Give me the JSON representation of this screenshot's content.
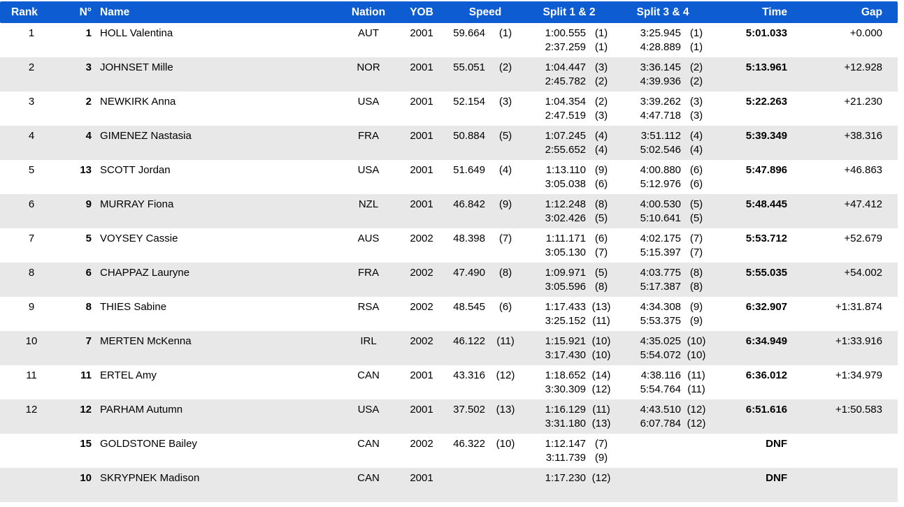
{
  "colors": {
    "header_bg": "#0d5cd2",
    "header_text": "#ffffff",
    "row_alt_bg": "#e8e8e8"
  },
  "table": {
    "header": {
      "rank": "Rank",
      "no": "N°",
      "name": "Name",
      "nation": "Nation",
      "yob": "YOB",
      "speed": "Speed",
      "split12": "Split 1 & 2",
      "split34": "Split 3 & 4",
      "time": "Time",
      "gap": "Gap"
    },
    "rows": [
      {
        "rank": "1",
        "no": "1",
        "name": "HOLL Valentina",
        "nation": "AUT",
        "yob": "2001",
        "speed": "59.664",
        "speed_rank": "(1)",
        "split1": "1:00.555",
        "split1_rank": "(1)",
        "split2": "2:37.259",
        "split2_rank": "(1)",
        "split3": "3:25.945",
        "split3_rank": "(1)",
        "split4": "4:28.889",
        "split4_rank": "(1)",
        "time": "5:01.033",
        "gap": "+0.000"
      },
      {
        "rank": "2",
        "no": "3",
        "name": "JOHNSET Mille",
        "nation": "NOR",
        "yob": "2001",
        "speed": "55.051",
        "speed_rank": "(2)",
        "split1": "1:04.447",
        "split1_rank": "(3)",
        "split2": "2:45.782",
        "split2_rank": "(2)",
        "split3": "3:36.145",
        "split3_rank": "(2)",
        "split4": "4:39.936",
        "split4_rank": "(2)",
        "time": "5:13.961",
        "gap": "+12.928"
      },
      {
        "rank": "3",
        "no": "2",
        "name": "NEWKIRK Anna",
        "nation": "USA",
        "yob": "2001",
        "speed": "52.154",
        "speed_rank": "(3)",
        "split1": "1:04.354",
        "split1_rank": "(2)",
        "split2": "2:47.519",
        "split2_rank": "(3)",
        "split3": "3:39.262",
        "split3_rank": "(3)",
        "split4": "4:47.718",
        "split4_rank": "(3)",
        "time": "5:22.263",
        "gap": "+21.230"
      },
      {
        "rank": "4",
        "no": "4",
        "name": "GIMENEZ Nastasia",
        "nation": "FRA",
        "yob": "2001",
        "speed": "50.884",
        "speed_rank": "(5)",
        "split1": "1:07.245",
        "split1_rank": "(4)",
        "split2": "2:55.652",
        "split2_rank": "(4)",
        "split3": "3:51.112",
        "split3_rank": "(4)",
        "split4": "5:02.546",
        "split4_rank": "(4)",
        "time": "5:39.349",
        "gap": "+38.316"
      },
      {
        "rank": "5",
        "no": "13",
        "name": "SCOTT Jordan",
        "nation": "USA",
        "yob": "2001",
        "speed": "51.649",
        "speed_rank": "(4)",
        "split1": "1:13.110",
        "split1_rank": "(9)",
        "split2": "3:05.038",
        "split2_rank": "(6)",
        "split3": "4:00.880",
        "split3_rank": "(6)",
        "split4": "5:12.976",
        "split4_rank": "(6)",
        "time": "5:47.896",
        "gap": "+46.863"
      },
      {
        "rank": "6",
        "no": "9",
        "name": "MURRAY Fiona",
        "nation": "NZL",
        "yob": "2001",
        "speed": "46.842",
        "speed_rank": "(9)",
        "split1": "1:12.248",
        "split1_rank": "(8)",
        "split2": "3:02.426",
        "split2_rank": "(5)",
        "split3": "4:00.530",
        "split3_rank": "(5)",
        "split4": "5:10.641",
        "split4_rank": "(5)",
        "time": "5:48.445",
        "gap": "+47.412"
      },
      {
        "rank": "7",
        "no": "5",
        "name": "VOYSEY Cassie",
        "nation": "AUS",
        "yob": "2002",
        "speed": "48.398",
        "speed_rank": "(7)",
        "split1": "1:11.171",
        "split1_rank": "(6)",
        "split2": "3:05.130",
        "split2_rank": "(7)",
        "split3": "4:02.175",
        "split3_rank": "(7)",
        "split4": "5:15.397",
        "split4_rank": "(7)",
        "time": "5:53.712",
        "gap": "+52.679"
      },
      {
        "rank": "8",
        "no": "6",
        "name": "CHAPPAZ Lauryne",
        "nation": "FRA",
        "yob": "2002",
        "speed": "47.490",
        "speed_rank": "(8)",
        "split1": "1:09.971",
        "split1_rank": "(5)",
        "split2": "3:05.596",
        "split2_rank": "(8)",
        "split3": "4:03.775",
        "split3_rank": "(8)",
        "split4": "5:17.387",
        "split4_rank": "(8)",
        "time": "5:55.035",
        "gap": "+54.002"
      },
      {
        "rank": "9",
        "no": "8",
        "name": "THIES Sabine",
        "nation": "RSA",
        "yob": "2002",
        "speed": "48.545",
        "speed_rank": "(6)",
        "split1": "1:17.433",
        "split1_rank": "(13)",
        "split2": "3:25.152",
        "split2_rank": "(11)",
        "split3": "4:34.308",
        "split3_rank": "(9)",
        "split4": "5:53.375",
        "split4_rank": "(9)",
        "time": "6:32.907",
        "gap": "+1:31.874"
      },
      {
        "rank": "10",
        "no": "7",
        "name": "MERTEN McKenna",
        "nation": "IRL",
        "yob": "2002",
        "speed": "46.122",
        "speed_rank": "(11)",
        "split1": "1:15.921",
        "split1_rank": "(10)",
        "split2": "3:17.430",
        "split2_rank": "(10)",
        "split3": "4:35.025",
        "split3_rank": "(10)",
        "split4": "5:54.072",
        "split4_rank": "(10)",
        "time": "6:34.949",
        "gap": "+1:33.916"
      },
      {
        "rank": "11",
        "no": "11",
        "name": "ERTEL Amy",
        "nation": "CAN",
        "yob": "2001",
        "speed": "43.316",
        "speed_rank": "(12)",
        "split1": "1:18.652",
        "split1_rank": "(14)",
        "split2": "3:30.309",
        "split2_rank": "(12)",
        "split3": "4:38.116",
        "split3_rank": "(11)",
        "split4": "5:54.764",
        "split4_rank": "(11)",
        "time": "6:36.012",
        "gap": "+1:34.979"
      },
      {
        "rank": "12",
        "no": "12",
        "name": "PARHAM Autumn",
        "nation": "USA",
        "yob": "2001",
        "speed": "37.502",
        "speed_rank": "(13)",
        "split1": "1:16.129",
        "split1_rank": "(11)",
        "split2": "3:31.180",
        "split2_rank": "(13)",
        "split3": "4:43.510",
        "split3_rank": "(12)",
        "split4": "6:07.784",
        "split4_rank": "(12)",
        "time": "6:51.616",
        "gap": "+1:50.583"
      },
      {
        "rank": "",
        "no": "15",
        "name": "GOLDSTONE Bailey",
        "nation": "CAN",
        "yob": "2002",
        "speed": "46.322",
        "speed_rank": "(10)",
        "split1": "1:12.147",
        "split1_rank": "(7)",
        "split2": "3:11.739",
        "split2_rank": "(9)",
        "split3": "",
        "split3_rank": "",
        "split4": "",
        "split4_rank": "",
        "time": "DNF",
        "gap": ""
      },
      {
        "rank": "",
        "no": "10",
        "name": "SKRYPNEK Madison",
        "nation": "CAN",
        "yob": "2001",
        "speed": "",
        "speed_rank": "",
        "split1": "1:17.230",
        "split1_rank": "(12)",
        "split2": "",
        "split2_rank": "",
        "split3": "",
        "split3_rank": "",
        "split4": "",
        "split4_rank": "",
        "time": "DNF",
        "gap": ""
      }
    ]
  }
}
